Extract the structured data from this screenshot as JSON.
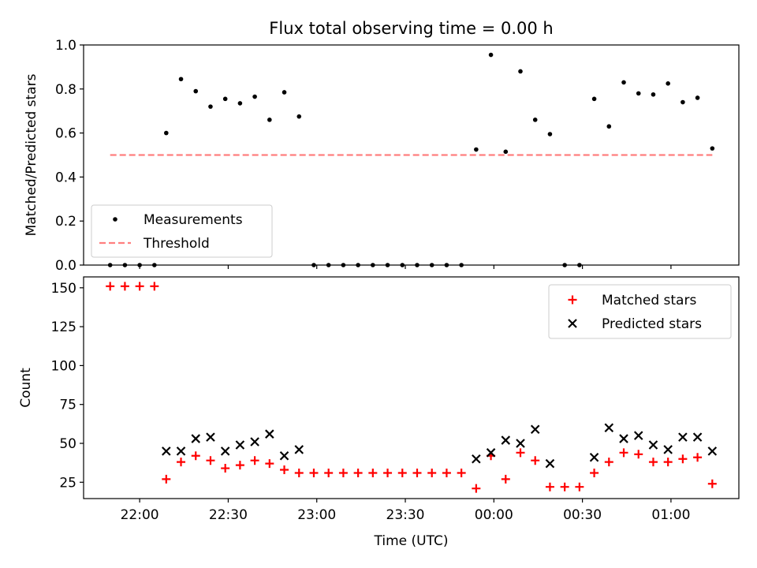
{
  "chart_data": [
    {
      "type": "scatter",
      "title": "Flux total observing time = 0.00 h",
      "xlabel": "",
      "ylabel": "Matched/Predicted stars",
      "ylim": [
        0,
        1.0
      ],
      "yticks": [
        "0.0",
        "0.2",
        "0.4",
        "0.6",
        "0.8",
        "1.0"
      ],
      "xlim": [
        "21:41",
        "01:23"
      ],
      "legend": {
        "placement": "lower-left",
        "entries": [
          "Measurements",
          "Threshold"
        ]
      },
      "series": [
        {
          "name": "Measurements",
          "kind": "points",
          "color": "#000000",
          "points": [
            [
              "21:50",
              0.0
            ],
            [
              "21:55",
              0.0
            ],
            [
              "22:00",
              0.0
            ],
            [
              "22:05",
              0.0
            ],
            [
              "22:09",
              0.6
            ],
            [
              "22:14",
              0.845
            ],
            [
              "22:19",
              0.79
            ],
            [
              "22:24",
              0.72
            ],
            [
              "22:29",
              0.755
            ],
            [
              "22:34",
              0.735
            ],
            [
              "22:39",
              0.765
            ],
            [
              "22:44",
              0.66
            ],
            [
              "22:49",
              0.785
            ],
            [
              "22:54",
              0.675
            ],
            [
              "22:59",
              0.0
            ],
            [
              "23:04",
              0.0
            ],
            [
              "23:09",
              0.0
            ],
            [
              "23:14",
              0.0
            ],
            [
              "23:19",
              0.0
            ],
            [
              "23:24",
              0.0
            ],
            [
              "23:29",
              0.0
            ],
            [
              "23:34",
              0.0
            ],
            [
              "23:39",
              0.0
            ],
            [
              "23:44",
              0.0
            ],
            [
              "23:49",
              0.0
            ],
            [
              "23:54",
              0.525
            ],
            [
              "23:59",
              0.955
            ],
            [
              "00:04",
              0.515
            ],
            [
              "00:09",
              0.88
            ],
            [
              "00:14",
              0.66
            ],
            [
              "00:19",
              0.595
            ],
            [
              "00:24",
              0.0
            ],
            [
              "00:29",
              0.0
            ],
            [
              "00:34",
              0.755
            ],
            [
              "00:39",
              0.63
            ],
            [
              "00:44",
              0.83
            ],
            [
              "00:49",
              0.78
            ],
            [
              "00:54",
              0.775
            ],
            [
              "00:59",
              0.825
            ],
            [
              "01:04",
              0.74
            ],
            [
              "01:09",
              0.76
            ],
            [
              "01:14",
              0.53
            ]
          ]
        },
        {
          "name": "Threshold",
          "kind": "dashed-line",
          "color": "#ff7f7f",
          "points": [
            [
              "21:50",
              0.5
            ],
            [
              "01:14",
              0.5
            ]
          ]
        }
      ]
    },
    {
      "type": "scatter",
      "title": "",
      "xlabel": "Time (UTC)",
      "ylabel": "Count",
      "ylim": [
        14.5,
        157
      ],
      "yticks": [
        "25",
        "50",
        "75",
        "100",
        "125",
        "150"
      ],
      "xlim": [
        "21:41",
        "01:23"
      ],
      "xticks": [
        "22:00",
        "22:30",
        "23:00",
        "23:30",
        "00:00",
        "00:30",
        "01:00"
      ],
      "legend": {
        "placement": "upper-right",
        "entries": [
          "Matched stars",
          "Predicted stars"
        ]
      },
      "series": [
        {
          "name": "Matched stars",
          "kind": "plus",
          "color": "#ff0000",
          "points": [
            [
              "21:50",
              151
            ],
            [
              "21:55",
              151
            ],
            [
              "22:00",
              151
            ],
            [
              "22:05",
              151
            ],
            [
              "22:09",
              27
            ],
            [
              "22:14",
              38
            ],
            [
              "22:19",
              42
            ],
            [
              "22:24",
              39
            ],
            [
              "22:29",
              34
            ],
            [
              "22:34",
              36
            ],
            [
              "22:39",
              39
            ],
            [
              "22:44",
              37
            ],
            [
              "22:49",
              33
            ],
            [
              "22:54",
              31
            ],
            [
              "22:59",
              31
            ],
            [
              "23:04",
              31
            ],
            [
              "23:09",
              31
            ],
            [
              "23:14",
              31
            ],
            [
              "23:19",
              31
            ],
            [
              "23:24",
              31
            ],
            [
              "23:29",
              31
            ],
            [
              "23:34",
              31
            ],
            [
              "23:39",
              31
            ],
            [
              "23:44",
              31
            ],
            [
              "23:49",
              31
            ],
            [
              "23:54",
              21
            ],
            [
              "23:59",
              42
            ],
            [
              "00:04",
              27
            ],
            [
              "00:09",
              44
            ],
            [
              "00:14",
              39
            ],
            [
              "00:19",
              22
            ],
            [
              "00:24",
              22
            ],
            [
              "00:29",
              22
            ],
            [
              "00:34",
              31
            ],
            [
              "00:39",
              38
            ],
            [
              "00:44",
              44
            ],
            [
              "00:49",
              43
            ],
            [
              "00:54",
              38
            ],
            [
              "00:59",
              38
            ],
            [
              "01:04",
              40
            ],
            [
              "01:09",
              41
            ],
            [
              "01:14",
              24
            ]
          ]
        },
        {
          "name": "Predicted stars",
          "kind": "cross",
          "color": "#000000",
          "points": [
            [
              "22:09",
              45
            ],
            [
              "22:14",
              45
            ],
            [
              "22:19",
              53
            ],
            [
              "22:24",
              54
            ],
            [
              "22:29",
              45
            ],
            [
              "22:34",
              49
            ],
            [
              "22:39",
              51
            ],
            [
              "22:44",
              56
            ],
            [
              "22:49",
              42
            ],
            [
              "22:54",
              46
            ],
            [
              "23:54",
              40
            ],
            [
              "23:59",
              44
            ],
            [
              "00:04",
              52
            ],
            [
              "00:09",
              50
            ],
            [
              "00:14",
              59
            ],
            [
              "00:19",
              37
            ],
            [
              "00:34",
              41
            ],
            [
              "00:39",
              60
            ],
            [
              "00:44",
              53
            ],
            [
              "00:49",
              55
            ],
            [
              "00:54",
              49
            ],
            [
              "00:59",
              46
            ],
            [
              "01:04",
              54
            ],
            [
              "01:09",
              54
            ],
            [
              "01:14",
              45
            ]
          ]
        }
      ]
    }
  ]
}
